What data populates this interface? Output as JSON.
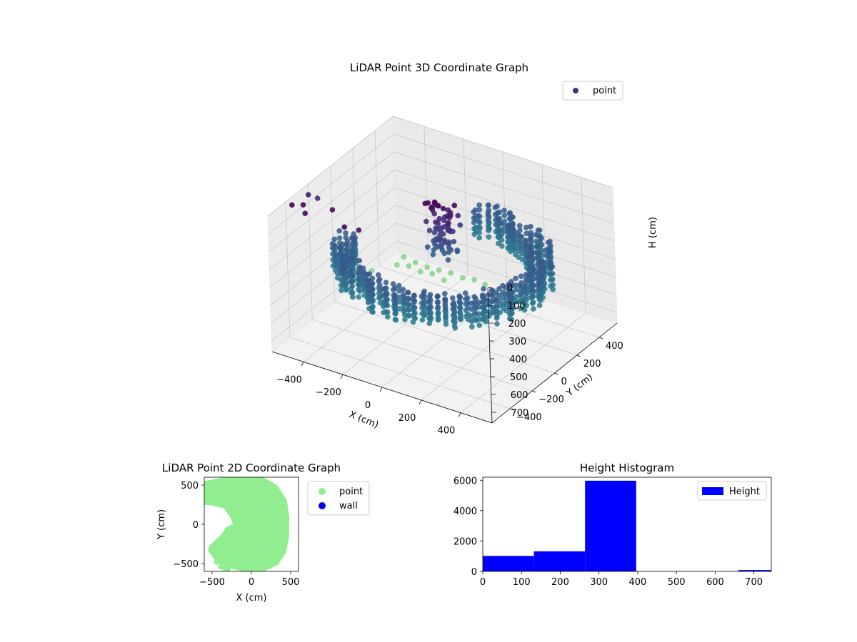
{
  "chart_data": [
    {
      "type": "scatter",
      "subtype": "scatter3d",
      "title": "LiDAR Point 3D Coordinate Graph",
      "xlabel": "X (cm)",
      "ylabel": "Y (cm)",
      "zlabel": "H (cm)",
      "xticks": [
        "−400",
        "−200",
        "0",
        "200",
        "400"
      ],
      "yticks": [
        "−400",
        "−200",
        "0",
        "200",
        "400"
      ],
      "zticks": [
        "0",
        "100",
        "200",
        "300",
        "400",
        "500",
        "600",
        "700"
      ],
      "xlim": [
        -560,
        560
      ],
      "ylim": [
        -560,
        560
      ],
      "zlim": [
        0,
        760
      ],
      "z_axis_inverted": true,
      "grid": true,
      "legend": {
        "position": "top-right",
        "entries": [
          {
            "label": "point",
            "color": "#472d7b"
          }
        ]
      },
      "series": [
        {
          "name": "point",
          "colormap": "viridis",
          "structure": "ring of points roughly 380–500 cm from origin, heights about 270–400 cm, gap between roughly 100° and 190°",
          "ring_radius_range": [
            380,
            500
          ],
          "ring_height_range": [
            270,
            400
          ],
          "ring_gap_deg": [
            100,
            190
          ],
          "center_cluster": {
            "x_range": [
              -60,
              60
            ],
            "y_range": [
              -40,
              80
            ],
            "h_range": [
              0,
              300
            ]
          },
          "high_points": [
            {
              "x": -480,
              "y": 480,
              "h": 720
            },
            {
              "x": -420,
              "y": 480,
              "h": 730
            },
            {
              "x": -360,
              "y": 480,
              "h": 735
            },
            {
              "x": -300,
              "y": 480,
              "h": 730
            },
            {
              "x": -240,
              "y": 480,
              "h": 725
            },
            {
              "x": -180,
              "y": 480,
              "h": 730
            },
            {
              "x": -120,
              "y": 480,
              "h": 720
            },
            {
              "x": -480,
              "y": 420,
              "h": 735
            },
            {
              "x": -420,
              "y": 420,
              "h": 720
            },
            {
              "x": -360,
              "y": 420,
              "h": 730
            },
            {
              "x": -300,
              "y": 420,
              "h": 720
            },
            {
              "x": -240,
              "y": 420,
              "h": 735
            },
            {
              "x": -540,
              "y": 300,
              "h": 730
            },
            {
              "x": -540,
              "y": 180,
              "h": 740
            },
            {
              "x": -60,
              "y": 470,
              "h": 720
            },
            {
              "x": 0,
              "y": 460,
              "h": 730
            },
            {
              "x": 60,
              "y": 460,
              "h": 725
            },
            {
              "x": 120,
              "y": 450,
              "h": 735
            }
          ],
          "low_outliers": [
            {
              "x": -560,
              "y": -120,
              "h": 120
            },
            {
              "x": -560,
              "y": -200,
              "h": 60
            },
            {
              "x": -540,
              "y": -380,
              "h": 20
            },
            {
              "x": -500,
              "y": -350,
              "h": 20
            },
            {
              "x": -450,
              "y": -420,
              "h": 15
            },
            {
              "x": -380,
              "y": -300,
              "h": 30
            },
            {
              "x": -250,
              "y": -420,
              "h": 20
            },
            {
              "x": -200,
              "y": -380,
              "h": 40
            }
          ]
        }
      ]
    },
    {
      "type": "scatter",
      "title": "LiDAR Point 2D Coordinate Graph",
      "xlabel": "X (cm)",
      "ylabel": "Y (cm)",
      "xticks": [
        -500,
        0,
        500
      ],
      "yticks": [
        -500,
        0,
        500
      ],
      "xlim": [
        -600,
        600
      ],
      "ylim": [
        -600,
        600
      ],
      "legend": {
        "position": "outside-right",
        "entries": [
          {
            "label": "point",
            "color": "#90ee90"
          },
          {
            "label": "wall",
            "color": "#0000ff"
          }
        ]
      },
      "series": [
        {
          "name": "point",
          "color": "#90ee90",
          "outline": [
            [
              -580,
              520
            ],
            [
              -300,
              580
            ],
            [
              -60,
              600
            ],
            [
              140,
              570
            ],
            [
              300,
              480
            ],
            [
              420,
              300
            ],
            [
              450,
              100
            ],
            [
              450,
              -150
            ],
            [
              410,
              -350
            ],
            [
              320,
              -490
            ],
            [
              150,
              -570
            ],
            [
              -60,
              -580
            ],
            [
              -260,
              -530
            ],
            [
              -430,
              -450
            ],
            [
              -520,
              -330
            ],
            [
              -500,
              -280
            ],
            [
              -410,
              -200
            ],
            [
              -360,
              -150
            ],
            [
              -300,
              -60
            ],
            [
              -190,
              -20
            ],
            [
              -250,
              120
            ],
            [
              -330,
              230
            ],
            [
              -480,
              270
            ],
            [
              -590,
              280
            ]
          ],
          "extra_points": [
            [
              -390,
              -540
            ],
            [
              -340,
              -560
            ],
            [
              -300,
              -570
            ],
            [
              -440,
              -480
            ],
            [
              -590,
              450
            ],
            [
              -520,
              380
            ]
          ]
        },
        {
          "name": "wall",
          "color": "#0000ff",
          "points": []
        }
      ]
    },
    {
      "type": "bar",
      "subtype": "histogram",
      "title": "Height Histogram",
      "xlabel": "",
      "ylabel": "",
      "xticks": [
        0,
        100,
        200,
        300,
        400,
        500,
        600,
        700
      ],
      "yticks": [
        0,
        2000,
        4000,
        6000
      ],
      "xlim": [
        0,
        745
      ],
      "ylim": [
        0,
        6200
      ],
      "color": "#0000ff",
      "legend": {
        "position": "top-right",
        "entries": [
          {
            "label": "Height",
            "color": "#0000ff"
          }
        ]
      },
      "bins": [
        {
          "x0": 0,
          "x1": 132,
          "value": 1020
        },
        {
          "x0": 132,
          "x1": 264,
          "value": 1320
        },
        {
          "x0": 264,
          "x1": 396,
          "value": 5970
        },
        {
          "x0": 396,
          "x1": 528,
          "value": 0
        },
        {
          "x0": 528,
          "x1": 660,
          "value": 0
        },
        {
          "x0": 660,
          "x1": 745,
          "value": 90
        }
      ]
    }
  ]
}
